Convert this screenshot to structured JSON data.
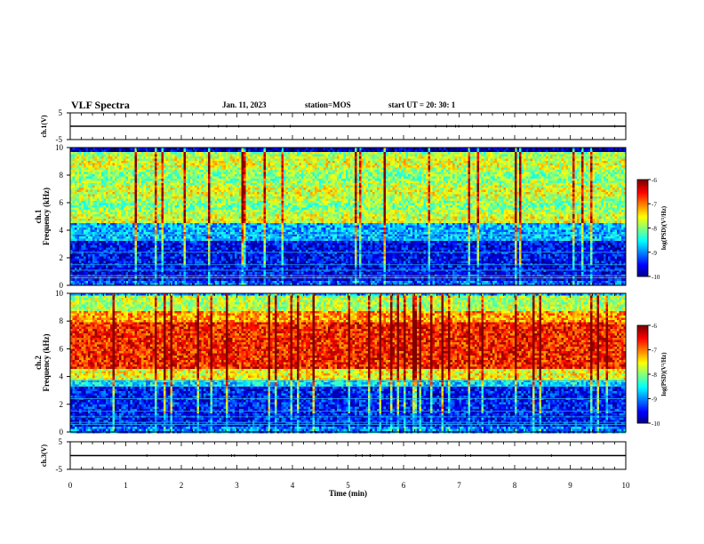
{
  "header": {
    "title": "VLF Spectra",
    "date": "Jan. 11, 2023",
    "station": "station=MOS",
    "start_ut": "start UT =   20: 30: 1"
  },
  "chart_data": [
    {
      "type": "line",
      "panel": "ch1-waveform",
      "ylabel": "ch.1(V)",
      "yticks": [
        "5",
        "-5"
      ],
      "ylim": [
        -5,
        5
      ],
      "series": [
        {
          "values": [
            0,
            0,
            0,
            0,
            0,
            0,
            0,
            0,
            0,
            0
          ]
        }
      ]
    },
    {
      "type": "heatmap",
      "panel": "ch1-spectrogram",
      "ylabel": "ch.1",
      "ylabel2": "Frequency (kHz)",
      "yticks": [
        "0",
        "2",
        "4",
        "6",
        "8",
        "10"
      ],
      "ylim": [
        0,
        10
      ],
      "xlim": [
        0,
        10
      ],
      "colorbar": {
        "ticks": [
          "-6",
          "-7",
          "-8",
          "-9",
          "-10"
        ],
        "label": "log(PSD)(V²/Hz)",
        "range": [
          -10,
          -6
        ]
      }
    },
    {
      "type": "heatmap",
      "panel": "ch2-spectrogram",
      "ylabel": "ch.2",
      "ylabel2": "Frequency (kHz)",
      "yticks": [
        "0",
        "2",
        "4",
        "6",
        "8",
        "10"
      ],
      "ylim": [
        0,
        10
      ],
      "xlim": [
        0,
        10
      ],
      "colorbar": {
        "ticks": [
          "-6",
          "-7",
          "-8",
          "-9",
          "-10"
        ],
        "label": "log(PSD)(V²/Hz)",
        "range": [
          -10,
          -6
        ]
      }
    },
    {
      "type": "line",
      "panel": "ch3-waveform",
      "ylabel": "ch.3(V)",
      "yticks": [
        "5",
        "-5"
      ],
      "ylim": [
        -5,
        5
      ],
      "xlabel": "Time (min)",
      "xticks": [
        "0",
        "1",
        "2",
        "3",
        "4",
        "5",
        "6",
        "7",
        "8",
        "9",
        "10"
      ],
      "xlim": [
        0,
        10
      ],
      "series": [
        {
          "values": [
            0,
            0,
            0,
            0,
            0,
            0,
            0,
            0,
            0,
            0
          ]
        }
      ]
    }
  ]
}
